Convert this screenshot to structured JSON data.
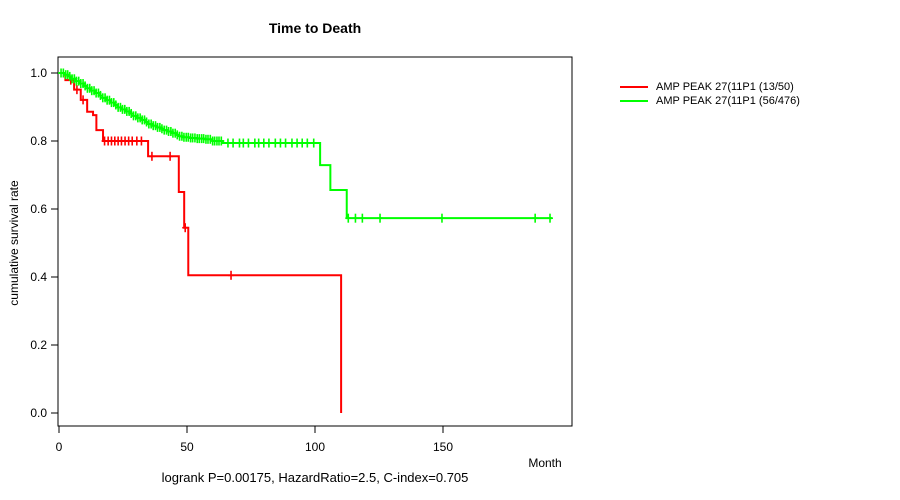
{
  "chart_data": {
    "type": "line",
    "subtype": "kaplan-meier-step",
    "title": "Time to Death",
    "xlabel": "Month",
    "ylabel": "cumulative survival rate",
    "subtitle": "logrank P=0.00175, HazardRatio=2.5, C-index=0.705",
    "xticks": [
      0,
      50,
      100,
      150
    ],
    "yticks": [
      0.0,
      0.2,
      0.4,
      0.6,
      0.8,
      1.0
    ],
    "xlim": [
      0,
      200
    ],
    "ylim": [
      0,
      1
    ],
    "grid": false,
    "legend_position": "right-outside",
    "axis_color": "#000000",
    "background_color": "#ffffff",
    "series": [
      {
        "name": "AMP PEAK 27(11P1 (13/50)",
        "color": "#ff0000",
        "steps": [
          [
            0,
            1.0
          ],
          [
            2.5,
            0.979
          ],
          [
            5.9,
            0.951
          ],
          [
            8.5,
            0.921
          ],
          [
            11,
            0.886
          ],
          [
            13.3,
            0.876
          ],
          [
            14.6,
            0.832
          ],
          [
            17.2,
            0.8
          ],
          [
            34.8,
            0.755
          ],
          [
            46.8,
            0.65
          ],
          [
            48.9,
            0.545
          ],
          [
            50.5,
            0.405
          ],
          [
            110.2,
            0.0
          ]
        ],
        "censor_months": [
          4.6,
          7.0,
          9.4,
          17.8,
          19.2,
          20.5,
          21.8,
          23.1,
          24.4,
          25.8,
          27.2,
          28.6,
          30.4,
          32.2,
          36.3,
          43.4,
          49.3,
          67.2
        ]
      },
      {
        "name": "AMP PEAK 27(11P1 (56/476)",
        "color": "#00ff00",
        "steps": [
          [
            0,
            1.0
          ],
          [
            2,
            0.995
          ],
          [
            3.5,
            0.99
          ],
          [
            5,
            0.983
          ],
          [
            6.5,
            0.976
          ],
          [
            8,
            0.969
          ],
          [
            9.5,
            0.962
          ],
          [
            11,
            0.955
          ],
          [
            12.5,
            0.948
          ],
          [
            14,
            0.941
          ],
          [
            15.5,
            0.934
          ],
          [
            17,
            0.927
          ],
          [
            18.5,
            0.92
          ],
          [
            20,
            0.913
          ],
          [
            21.5,
            0.906
          ],
          [
            23,
            0.899
          ],
          [
            24.5,
            0.893
          ],
          [
            26,
            0.887
          ],
          [
            27.5,
            0.881
          ],
          [
            29,
            0.874
          ],
          [
            30.5,
            0.868
          ],
          [
            32,
            0.862
          ],
          [
            33.5,
            0.856
          ],
          [
            35,
            0.85
          ],
          [
            36.5,
            0.845
          ],
          [
            38,
            0.84
          ],
          [
            39.5,
            0.836
          ],
          [
            41,
            0.832
          ],
          [
            42.5,
            0.828
          ],
          [
            44,
            0.823
          ],
          [
            45.5,
            0.818
          ],
          [
            47,
            0.814
          ],
          [
            48.5,
            0.811
          ],
          [
            51,
            0.809
          ],
          [
            54,
            0.807
          ],
          [
            57,
            0.805
          ],
          [
            60,
            0.8
          ],
          [
            64,
            0.794
          ],
          [
            102,
            0.729
          ],
          [
            106,
            0.656
          ],
          [
            112.4,
            0.573
          ],
          [
            192.6,
            0.573
          ]
        ],
        "censor_months": [
          0.8,
          1.7,
          2.6,
          3.4,
          4.2,
          5.1,
          6,
          6.8,
          7.7,
          8.5,
          9.4,
          10.2,
          11.1,
          12,
          12.8,
          13.7,
          14.5,
          15.4,
          16.2,
          17.1,
          18,
          18.8,
          19.7,
          20.5,
          21.4,
          22.2,
          23.1,
          24,
          24.8,
          25.7,
          26.5,
          27.4,
          28.2,
          29.1,
          30,
          30.8,
          31.7,
          32.5,
          33.4,
          34.2,
          35.1,
          36,
          36.8,
          37.7,
          38.5,
          39.4,
          40.2,
          41.1,
          42,
          42.8,
          43.7,
          44.5,
          45.4,
          46.2,
          47.1,
          48,
          48.8,
          49.7,
          50.5,
          51.4,
          52.2,
          53.1,
          54,
          54.8,
          55.7,
          56.5,
          57.4,
          58.2,
          59.1,
          60,
          60.8,
          61.7,
          62.5,
          63.4,
          66,
          68,
          70.5,
          72,
          74,
          76.5,
          78,
          80,
          82,
          84.5,
          86.5,
          88.5,
          91,
          93,
          95,
          97,
          99.5,
          113,
          115.8,
          118.5,
          125.4,
          149.6,
          186,
          191.8
        ]
      }
    ]
  }
}
